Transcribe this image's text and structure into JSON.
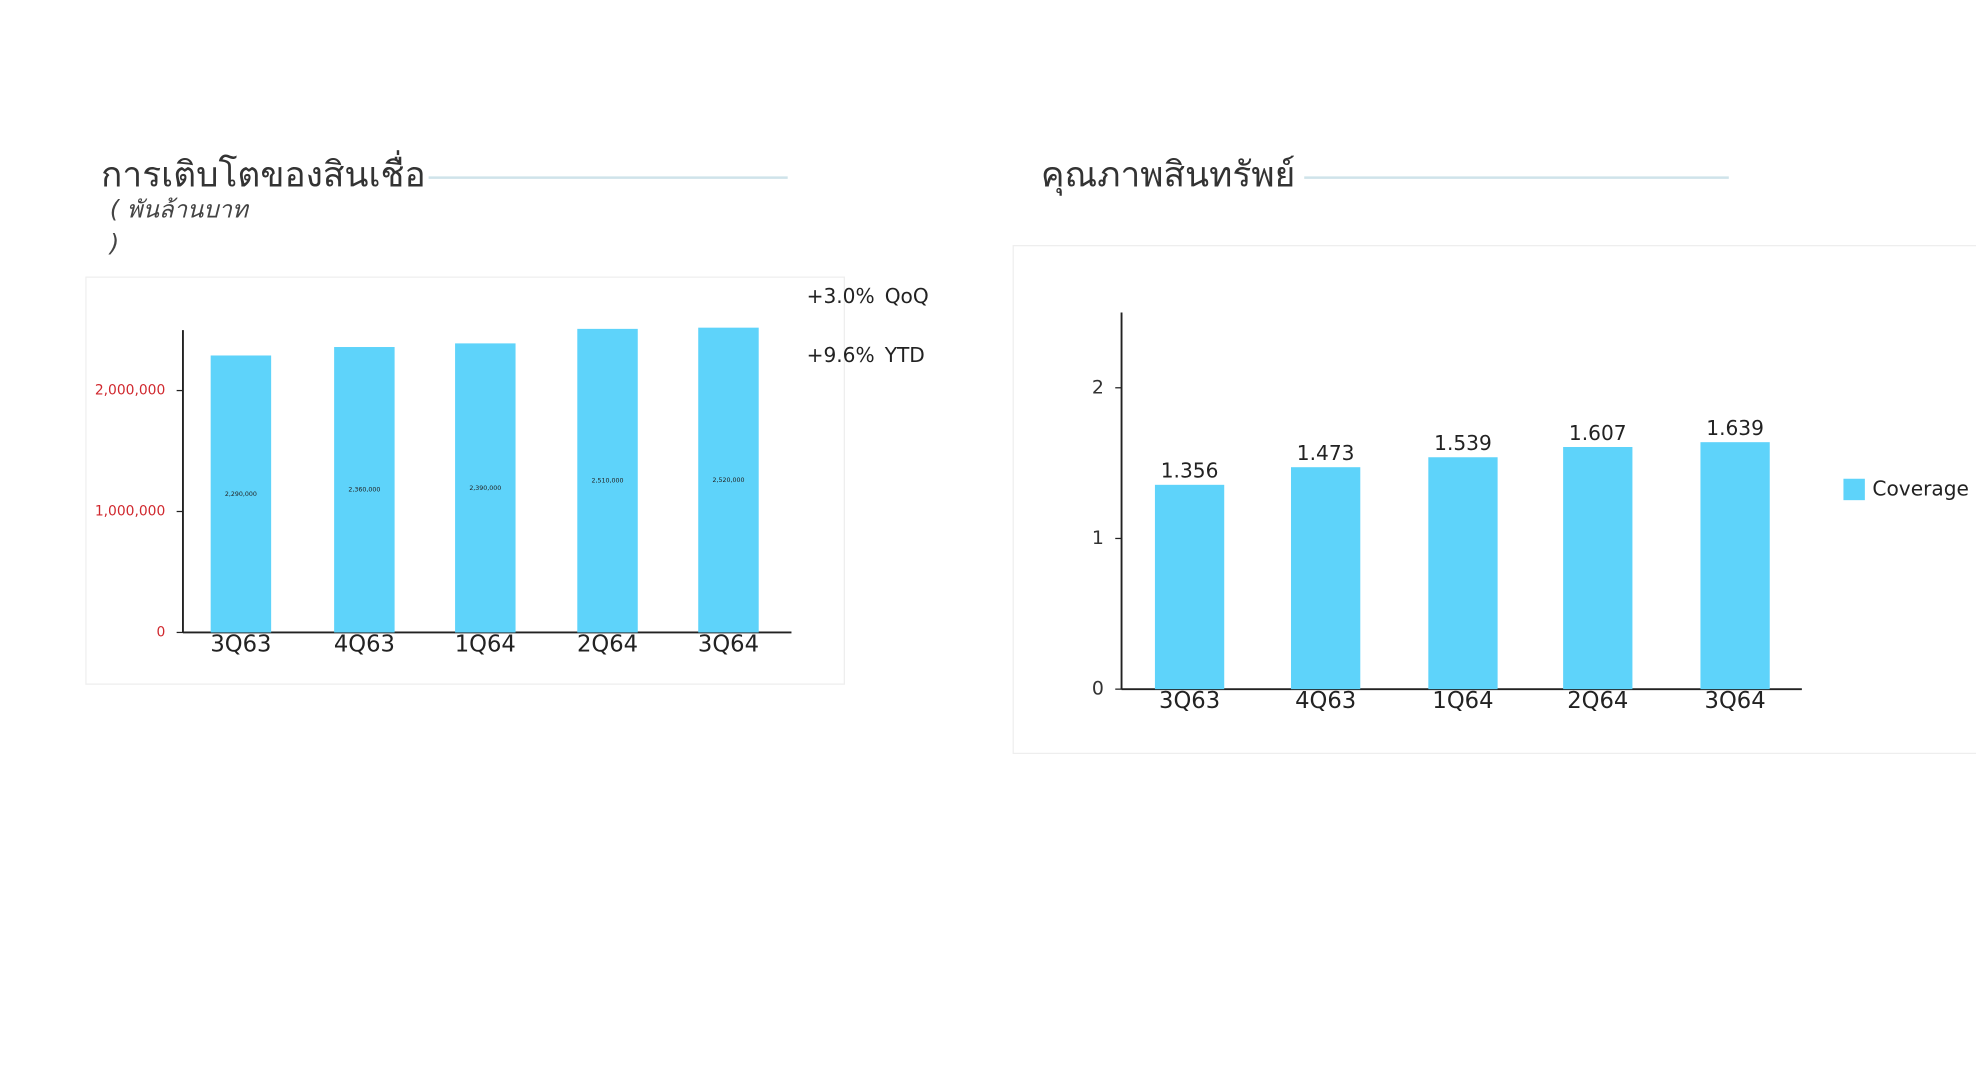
{
  "chart_data": [
    {
      "type": "bar",
      "title": "การเติบโตของสินเชื่อ",
      "subtitle": [
        "( พันล้านบาท",
        ")"
      ],
      "annotations": [
        [
          "+3.0%",
          "QoQ"
        ],
        [
          "+9.6%",
          "YTD"
        ]
      ],
      "categories": [
        "3Q63",
        "4Q63",
        "1Q64",
        "2Q64",
        "3Q64"
      ],
      "values": [
        2290000,
        2360000,
        2390000,
        2510000,
        2520000
      ],
      "value_labels": [
        "2,290,000",
        "2,360,000",
        "2,390,000",
        "2,510,000",
        "2,520,000"
      ],
      "color": "#5ed3fa",
      "ylim": [
        0,
        2500000
      ],
      "yticks": [
        0,
        {
          "value": 1000000,
          "label": "1,000,000"
        },
        {
          "value": 2000000,
          "label": "2,000,000"
        }
      ]
    },
    {
      "type": "bar",
      "title": "คุณภาพสินทรัพย์",
      "categories": [
        "3Q63",
        "4Q63",
        "1Q64",
        "2Q64",
        "3Q64"
      ],
      "series": [
        {
          "name": "Coverage r",
          "color": "#5ed3fa",
          "values": [
            1.356,
            1.473,
            1.539,
            1.607,
            1.639
          ]
        }
      ],
      "ylim": [
        0,
        2.5
      ],
      "yticks": [
        0,
        1,
        2
      ]
    }
  ]
}
